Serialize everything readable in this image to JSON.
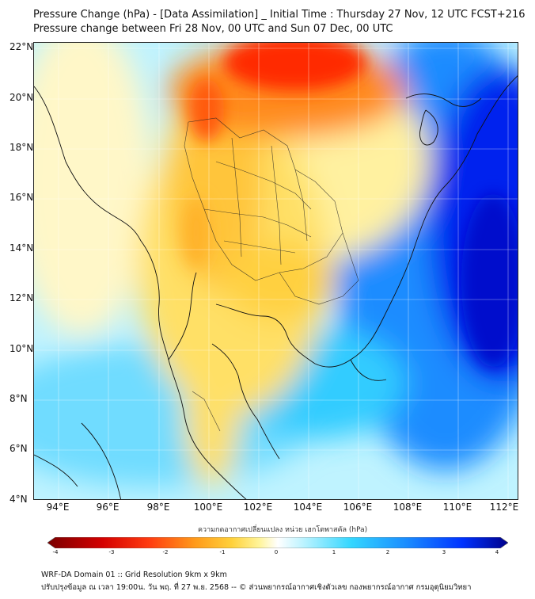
{
  "title_line1": "Pressure Change (hPa) - [Data Assimilation] _ Initial Time : Thursday 27 Nov, 12 UTC FCST+216",
  "title_line2": "Pressure change between Fri 28 Nov, 00 UTC and Sun 07 Dec, 00 UTC",
  "lat_labels": [
    "22°N",
    "20°N",
    "18°N",
    "16°N",
    "14°N",
    "12°N",
    "10°N",
    "8°N",
    "6°N",
    "4°N"
  ],
  "lon_labels": [
    "94°E",
    "96°E",
    "98°E",
    "100°E",
    "102°E",
    "104°E",
    "106°E",
    "108°E",
    "110°E",
    "112°E"
  ],
  "colorbar": {
    "label": "ความกดอากาศเปลี่ยนแปลง หน่วย เฮกโตพาสคัล (hPa)",
    "ticks": [
      "-4",
      "-3",
      "-2",
      "-1",
      "0",
      "1",
      "2",
      "3",
      "4"
    ],
    "colors": [
      "#7a0000",
      "#d40000",
      "#ff3b10",
      "#ff9a1a",
      "#ffd13a",
      "#fff49a",
      "#ffffff",
      "#b6f2ff",
      "#33d6ff",
      "#1a8cff",
      "#0033ff",
      "#00008b"
    ]
  },
  "footer_line1": "WRF-DA Domain 01 :: Grid Resolution 9km x 9km",
  "footer_line2": "ปรับปรุงข้อมูล ณ เวลา 19:00น. วัน พฤ. ที่ 27 พ.ย. 2568 -- © ส่วนพยากรณ์อากาศเชิงตัวเลข กองพยากรณ์อากาศ กรมอุตุนิยมวิทยา"
}
